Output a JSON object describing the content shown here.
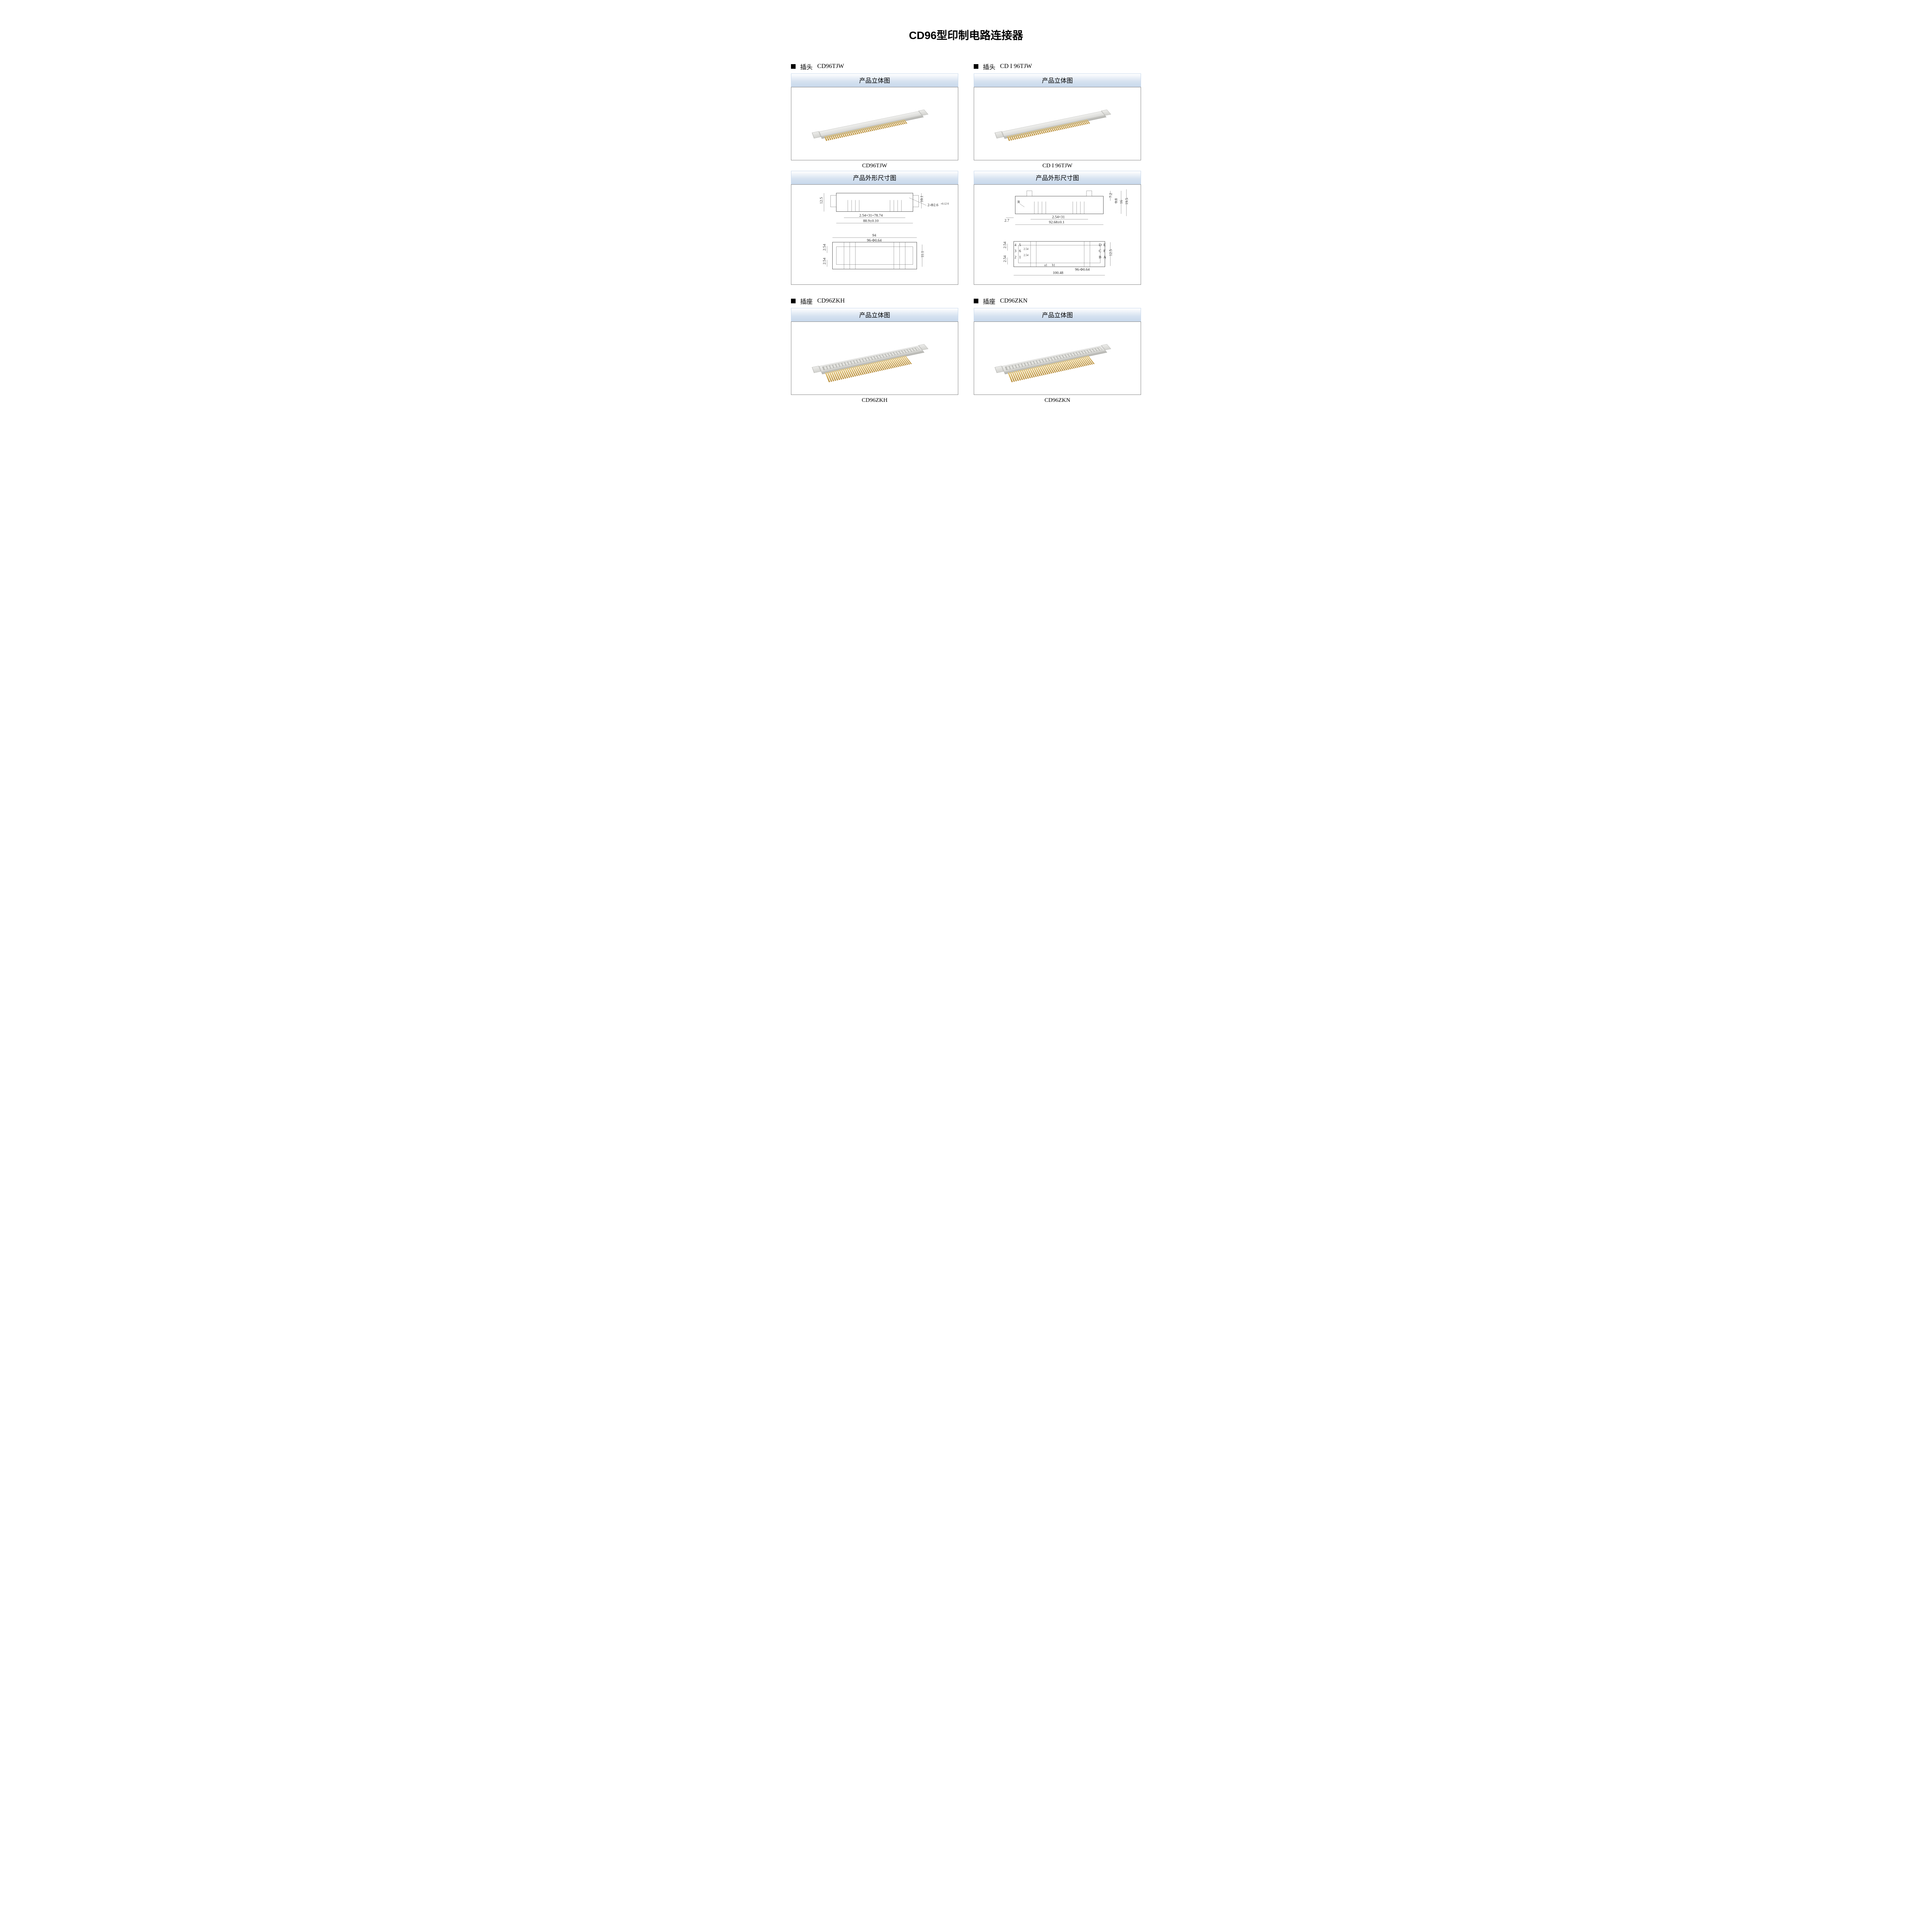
{
  "page_title": "CD96型印制电路连接器",
  "section_labels": {
    "iso_view": "产品立体图",
    "dim_view": "产品外形尺寸图"
  },
  "colors": {
    "bar_grad_top": "#ffffff",
    "bar_grad_bottom": "#c9d9ec",
    "frame_border": "#888888",
    "pin_gold_light": "#e8c97a",
    "pin_gold_dark": "#b68a34",
    "body_light": "#f0f0ee",
    "body_dark": "#d9d9d6",
    "line": "#333333"
  },
  "products": [
    {
      "head_prefix": "插头",
      "model": "CD96TJW",
      "caption": "CD96TJW",
      "kind": "plug",
      "has_dim": true,
      "dims": {
        "top_left_v": "12.5",
        "top_right_v": "10.1",
        "hole_note": "2-Φ2.6",
        "hole_tol": "+0.12\n 0",
        "pitch_len": "2.54×31=78.74",
        "outer_len": "88.9±0.10",
        "bottom_outer": "94",
        "pin_note": "96-Φ0.64",
        "left_v1": "2.54",
        "left_v2": "2.54",
        "right_v": "11.1"
      }
    },
    {
      "head_prefix": "插头",
      "model": "CD I 96TJW",
      "caption": "CD I 96TJW",
      "kind": "plug",
      "has_dim": true,
      "dims": {
        "top_right_a": "7.2",
        "top_right_b": "0.8",
        "top_right_c": "16",
        "top_right_d": "19.5",
        "r_label": "R",
        "left_small": "2.7",
        "pitch_len": "2.54×31",
        "outer_len": "92.68±0.1",
        "left_v1": "2.54",
        "left_v2": "2.54",
        "row_labels_left": [
          "4",
          "5",
          "3",
          "6",
          "2",
          "1"
        ],
        "row_labels_right": [
          "D",
          "E",
          "C",
          "F",
          "B",
          "A"
        ],
        "row_dims": [
          "2.54",
          "2.54",
          "a1",
          "b1"
        ],
        "right_v": "12.5",
        "bottom_outer": "100.48",
        "pin_note": "96-Φ0.64"
      }
    },
    {
      "head_prefix": "插座",
      "model": "CD96ZKH",
      "caption": "CD96ZKH",
      "kind": "socket",
      "has_dim": false
    },
    {
      "head_prefix": "插座",
      "model": "CD96ZKN",
      "caption": "CD96ZKN",
      "kind": "socket",
      "has_dim": false
    }
  ],
  "pin_count_render": 44
}
